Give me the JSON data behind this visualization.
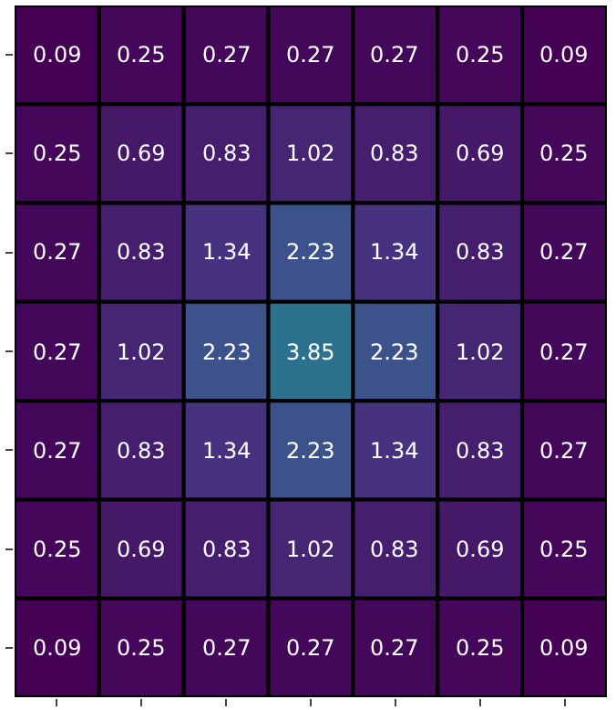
{
  "chart_data": {
    "type": "heatmap",
    "categories": [
      null,
      null,
      null,
      null,
      null,
      null,
      null
    ],
    "y_categories": [
      null,
      null,
      null,
      null,
      null,
      null,
      null
    ],
    "cells": [
      [
        0.09,
        0.25,
        0.27,
        0.27,
        0.27,
        0.25,
        0.09
      ],
      [
        0.25,
        0.69,
        0.83,
        1.02,
        0.83,
        0.69,
        0.25
      ],
      [
        0.27,
        0.83,
        1.34,
        2.23,
        1.34,
        0.83,
        0.27
      ],
      [
        0.27,
        1.02,
        2.23,
        3.85,
        2.23,
        1.02,
        0.27
      ],
      [
        0.27,
        0.83,
        1.34,
        2.23,
        1.34,
        0.83,
        0.27
      ],
      [
        0.25,
        0.69,
        0.83,
        1.02,
        0.83,
        0.69,
        0.25
      ],
      [
        0.09,
        0.25,
        0.27,
        0.27,
        0.27,
        0.25,
        0.09
      ]
    ],
    "data_labels": true
  }
}
